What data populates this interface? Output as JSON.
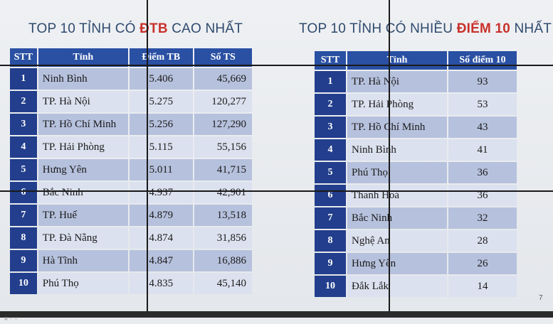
{
  "left": {
    "title_prefix": "TOP 10 TỈNH CÓ ",
    "title_highlight": "ĐTB",
    "title_suffix": " CAO NHẤT",
    "headers": [
      "STT",
      "Tỉnh",
      "Điểm TB",
      "Số TS"
    ],
    "rows": [
      {
        "stt": "1",
        "name": "Ninh Bình",
        "avg": "5.406",
        "count": "45,669"
      },
      {
        "stt": "2",
        "name": "TP. Hà Nội",
        "avg": "5.275",
        "count": "120,277"
      },
      {
        "stt": "3",
        "name": "TP. Hồ Chí Minh",
        "avg": "5.256",
        "count": "127,290"
      },
      {
        "stt": "4",
        "name": "TP. Hải Phòng",
        "avg": "5.115",
        "count": "55,156"
      },
      {
        "stt": "5",
        "name": "Hưng Yên",
        "avg": "5.011",
        "count": "41,715"
      },
      {
        "stt": "6",
        "name": "Bắc Ninh",
        "avg": "4.937",
        "count": "42,901"
      },
      {
        "stt": "7",
        "name": "TP. Huế",
        "avg": "4.879",
        "count": "13,518"
      },
      {
        "stt": "8",
        "name": "TP. Đà Nẵng",
        "avg": "4.874",
        "count": "31,856"
      },
      {
        "stt": "9",
        "name": "Hà Tĩnh",
        "avg": "4.847",
        "count": "16,886"
      },
      {
        "stt": "10",
        "name": "Phú Thọ",
        "avg": "4.835",
        "count": "45,140"
      }
    ]
  },
  "right": {
    "title_prefix": "TOP 10 TỈNH CÓ NHIỀU ",
    "title_highlight": "ĐIỂM 10",
    "title_suffix": " NHẤT",
    "headers": [
      "STT",
      "Tỉnh",
      "Số điểm 10"
    ],
    "rows": [
      {
        "stt": "1",
        "name": "TP. Hà Nội",
        "tens": "93"
      },
      {
        "stt": "2",
        "name": "TP. Hải Phòng",
        "tens": "53"
      },
      {
        "stt": "3",
        "name": "TP. Hồ Chí Minh",
        "tens": "43"
      },
      {
        "stt": "4",
        "name": "Ninh Bình",
        "tens": "41"
      },
      {
        "stt": "5",
        "name": "Phú Thọ",
        "tens": "36"
      },
      {
        "stt": "6",
        "name": "Thanh Hoá",
        "tens": "36"
      },
      {
        "stt": "7",
        "name": "Bắc Ninh",
        "tens": "32"
      },
      {
        "stt": "8",
        "name": "Nghệ An",
        "tens": "28"
      },
      {
        "stt": "9",
        "name": "Hưng Yên",
        "tens": "26"
      },
      {
        "stt": "10",
        "name": "Đắk Lắk",
        "tens": "14"
      }
    ]
  },
  "slide_number": "7",
  "colors": {
    "header_bg": "#2a50a3",
    "stt_bg": "#223e8c",
    "row_odd": "#b6c1dd",
    "row_even": "#dbe1ee",
    "title_blue": "#2f4a6e",
    "highlight_red": "#c9312b"
  }
}
